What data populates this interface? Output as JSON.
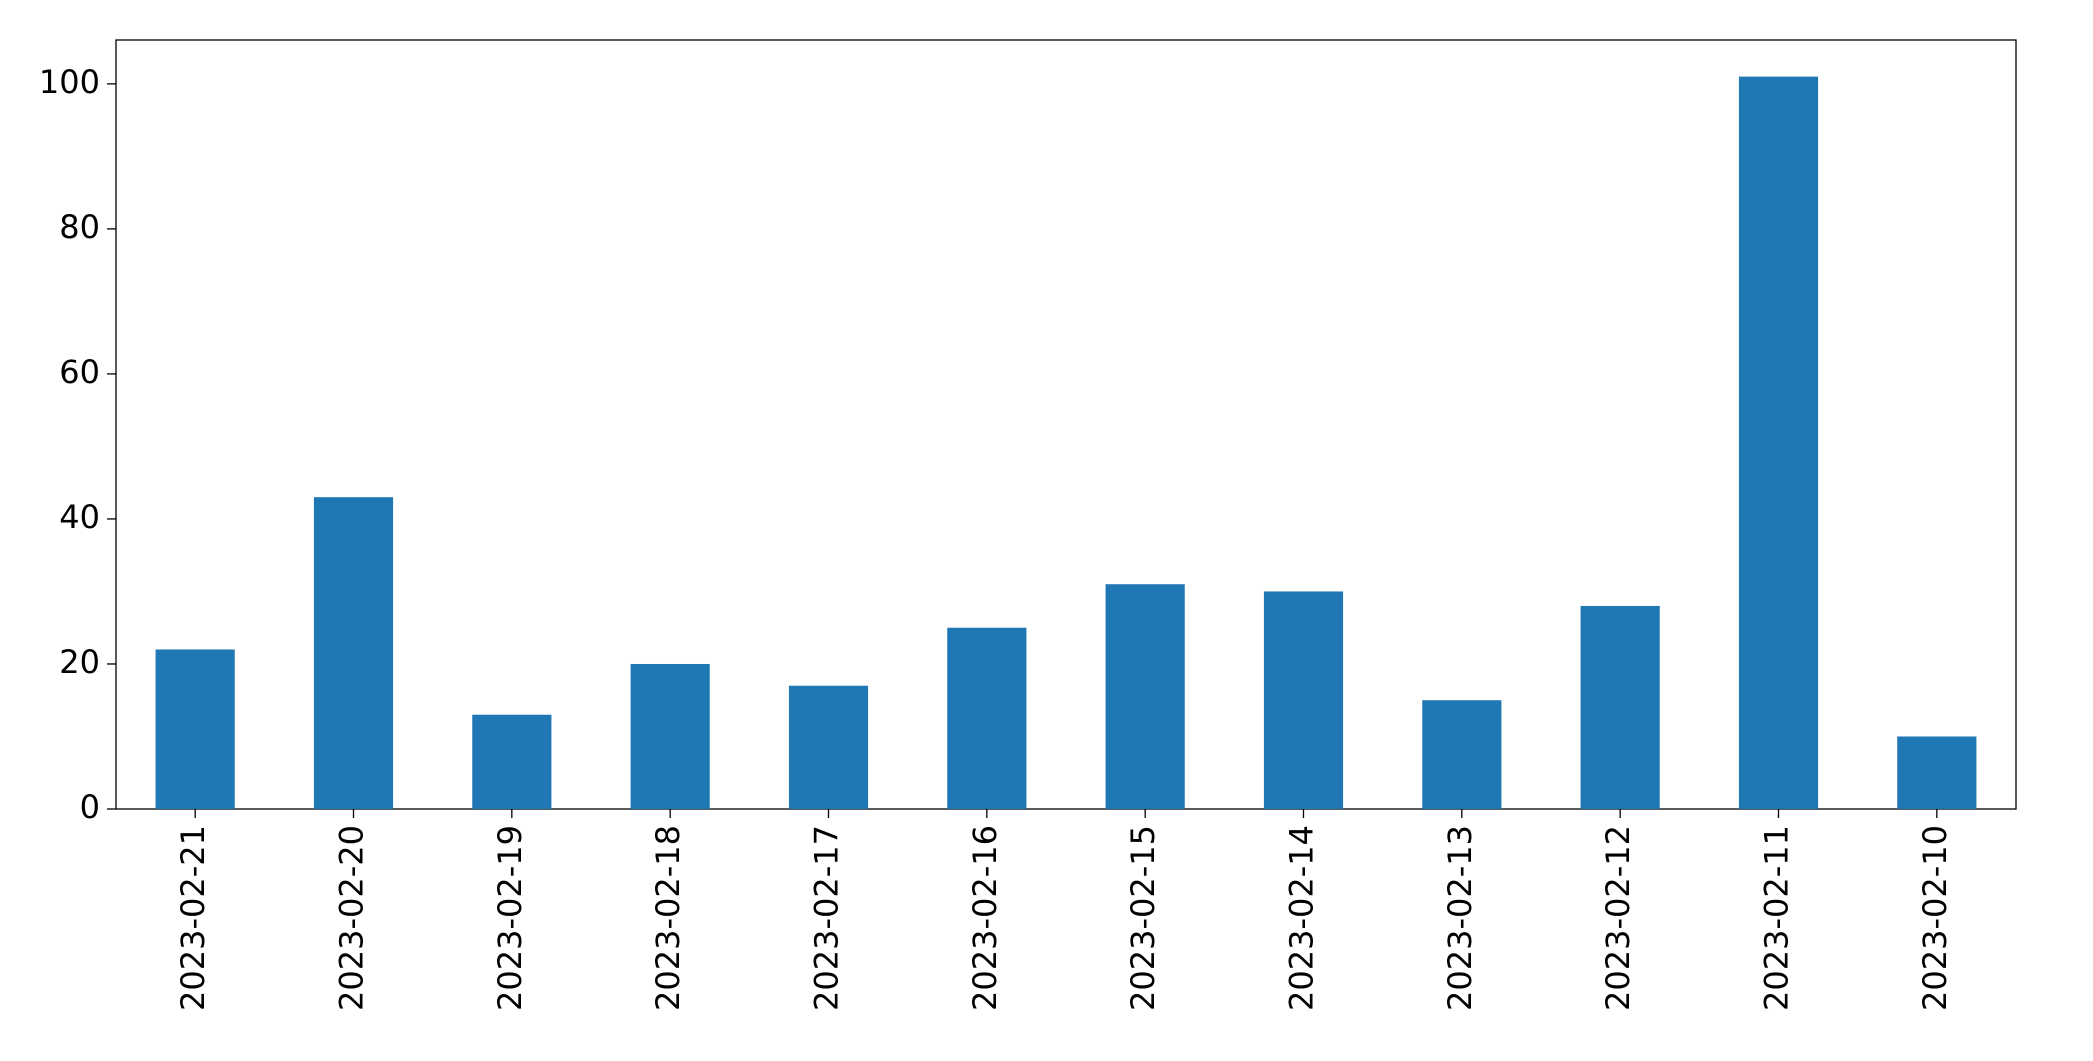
{
  "chart_data": {
    "type": "bar",
    "categories": [
      "2023-02-21",
      "2023-02-20",
      "2023-02-19",
      "2023-02-18",
      "2023-02-17",
      "2023-02-16",
      "2023-02-15",
      "2023-02-14",
      "2023-02-13",
      "2023-02-12",
      "2023-02-11",
      "2023-02-10"
    ],
    "values": [
      22,
      43,
      13,
      20,
      17,
      25,
      31,
      30,
      15,
      28,
      101,
      10
    ],
    "color": "#1f77b4",
    "ylim": [
      0,
      106.05
    ],
    "yticks": [
      0,
      20,
      40,
      60,
      80,
      100
    ],
    "grid": false
  }
}
